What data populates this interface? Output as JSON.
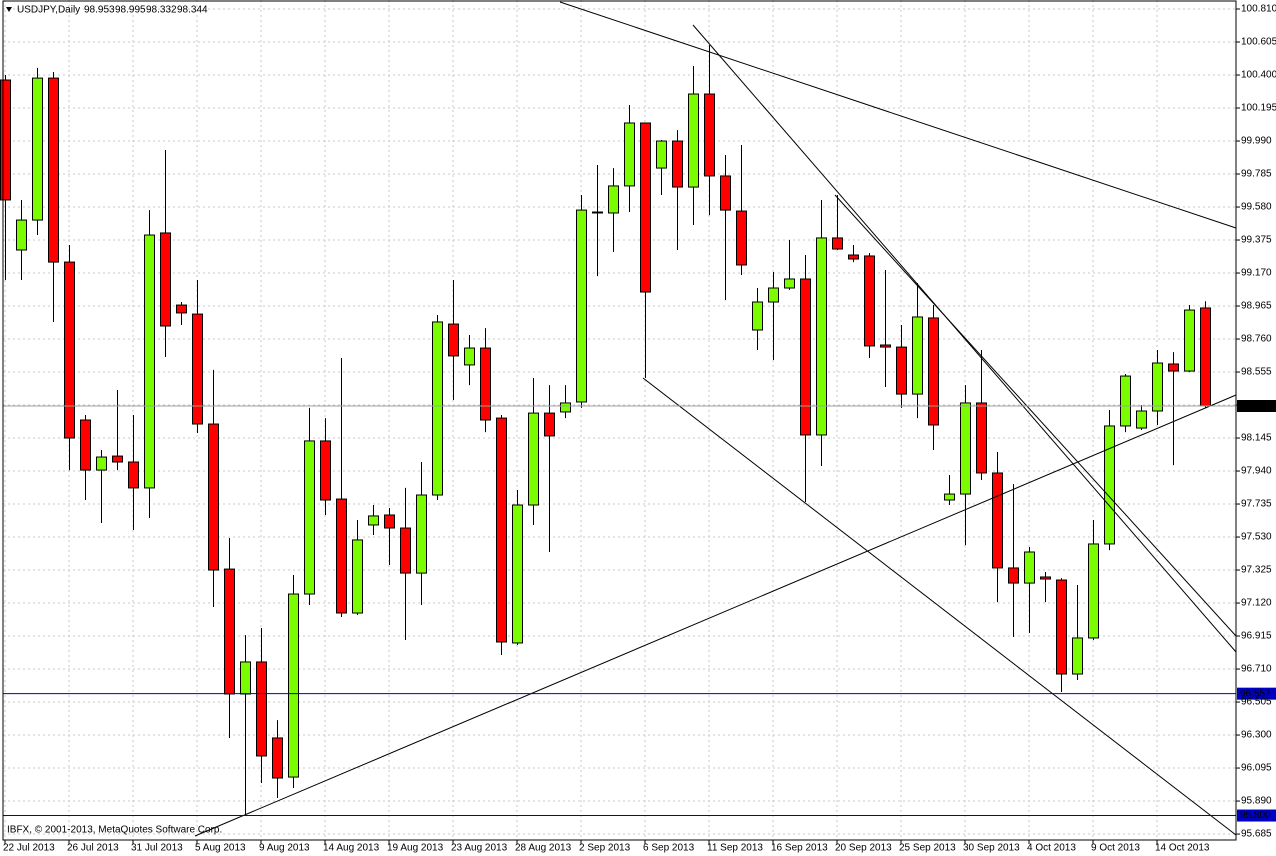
{
  "chart_data": {
    "type": "candlestick",
    "title": "USDJPY,Daily",
    "footer": "IBFX, © 2001-2013, MetaQuotes Software Corp.",
    "categories": [
      "22 Jul 2013",
      null,
      null,
      null,
      "26 Jul 2013",
      null,
      null,
      null,
      "31 Jul 2013",
      null,
      null,
      null,
      "5 Aug 2013",
      null,
      null,
      null,
      "9 Aug 2013",
      null,
      null,
      null,
      "14 Aug 2013",
      null,
      null,
      null,
      "19 Aug 2013",
      null,
      null,
      null,
      "23 Aug 2013",
      null,
      null,
      null,
      "28 Aug 2013",
      null,
      null,
      null,
      "2 Sep 2013",
      null,
      null,
      null,
      "6 Sep 2013",
      null,
      null,
      null,
      "11 Sep 2013",
      null,
      null,
      null,
      "16 Sep 2013",
      null,
      null,
      null,
      "20 Sep 2013",
      null,
      null,
      null,
      "25 Sep 2013",
      null,
      null,
      null,
      "30 Sep 2013",
      null,
      null,
      null,
      "4 Oct 2013",
      null,
      null,
      null,
      "9 Oct 2013",
      null,
      null,
      null,
      "14 Oct 2013",
      null,
      null,
      null
    ],
    "open": [
      100.369,
      99.313,
      99.499,
      100.381,
      99.238,
      98.257,
      97.946,
      98.033,
      97.996,
      97.835,
      99.419,
      98.971,
      98.915,
      98.232,
      97.331,
      96.555,
      96.754,
      96.282,
      96.039,
      97.176,
      98.127,
      97.766,
      97.058,
      97.605,
      97.667,
      97.586,
      97.306,
      97.791,
      98.853,
      98.599,
      98.704,
      98.269,
      96.872,
      97.729,
      98.3,
      98.307,
      98.369,
      99.549,
      99.543,
      99.711,
      100.102,
      99.822,
      99.99,
      99.704,
      100.282,
      99.773,
      99.555,
      98.816,
      98.99,
      99.077,
      99.133,
      98.164,
      99.388,
      99.282,
      99.276,
      98.723,
      98.71,
      98.418,
      98.891,
      97.76,
      97.797,
      98.363,
      97.928,
      97.338,
      97.244,
      97.282,
      97.263,
      96.679,
      96.903,
      97.487,
      98.22,
      98.207,
      98.313,
      98.605,
      98.561,
      98.953
    ],
    "high": [
      100.4,
      99.624,
      100.444,
      100.419,
      99.344,
      98.288,
      98.071,
      98.443,
      98.288,
      99.561,
      99.934,
      98.99,
      99.127,
      98.568,
      97.524,
      96.921,
      96.965,
      96.393,
      97.294,
      98.332,
      98.269,
      98.642,
      97.636,
      97.729,
      97.71,
      97.835,
      97.996,
      98.909,
      99.127,
      98.785,
      98.828,
      98.288,
      97.822,
      98.518,
      98.474,
      98.474,
      99.655,
      99.841,
      99.822,
      100.214,
      100.102,
      99.996,
      100.058,
      100.456,
      100.586,
      99.903,
      99.965,
      99.077,
      99.176,
      99.375,
      99.282,
      99.624,
      99.655,
      99.344,
      99.294,
      99.189,
      98.847,
      99.108,
      98.971,
      97.915,
      98.474,
      98.692,
      98.058,
      97.859,
      97.468,
      97.313,
      97.275,
      97.232,
      97.636,
      98.319,
      98.543,
      98.35,
      98.692,
      98.679,
      98.971,
      98.995
    ],
    "low": [
      99.127,
      99.127,
      99.406,
      98.866,
      97.946,
      97.76,
      97.617,
      97.946,
      97.574,
      97.648,
      98.648,
      98.847,
      98.176,
      97.095,
      96.282,
      95.803,
      96.002,
      95.909,
      95.971,
      97.108,
      97.667,
      97.033,
      97.046,
      97.543,
      97.356,
      96.89,
      97.108,
      97.76,
      98.381,
      98.474,
      98.182,
      96.797,
      96.859,
      97.605,
      97.437,
      98.269,
      98.332,
      99.151,
      99.301,
      99.549,
      98.518,
      99.655,
      99.313,
      99.468,
      99.53,
      99.002,
      99.158,
      98.692,
      98.63,
      99.065,
      97.748,
      97.971,
      99.313,
      99.238,
      98.642,
      98.462,
      98.332,
      98.269,
      98.071,
      97.729,
      97.48,
      97.884,
      97.126,
      96.909,
      96.934,
      97.126,
      96.567,
      96.642,
      96.89,
      97.449,
      98.182,
      98.195,
      98.226,
      97.977,
      98.555,
      98.332
    ],
    "close": [
      99.624,
      99.499,
      100.381,
      99.238,
      98.145,
      97.946,
      98.027,
      97.996,
      97.835,
      99.406,
      98.841,
      98.922,
      98.232,
      97.325,
      96.555,
      96.754,
      96.17,
      96.033,
      97.176,
      98.127,
      97.76,
      97.058,
      97.512,
      97.661,
      97.586,
      97.306,
      97.791,
      98.866,
      98.655,
      98.704,
      98.257,
      96.878,
      97.729,
      98.3,
      98.158,
      98.363,
      99.561,
      99.543,
      99.711,
      100.102,
      99.052,
      99.99,
      99.704,
      100.282,
      99.773,
      99.561,
      99.22,
      98.99,
      99.077,
      99.133,
      98.164,
      99.388,
      99.319,
      99.257,
      98.717,
      98.71,
      98.418,
      98.897,
      98.226,
      97.797,
      98.363,
      97.928,
      97.338,
      97.244,
      97.437,
      97.269,
      96.679,
      96.903,
      97.487,
      98.22,
      98.53,
      98.313,
      98.611,
      98.561,
      98.94,
      98.344
    ],
    "up_color": "#7cfc00",
    "down_color": "#ff0000",
    "ylim": [
      95.648,
      100.866
    ],
    "yticks": [
      {
        "value": 100.81,
        "label": "100.810"
      },
      100.605,
      {
        "value": 100.4,
        "label": "100.400"
      },
      100.195,
      {
        "value": 99.99,
        "label": "99.990"
      },
      99.785,
      {
        "value": 99.58,
        "label": "99.580"
      },
      99.375,
      {
        "value": 99.17,
        "label": "99.170"
      },
      98.965,
      {
        "value": 98.76,
        "label": "98.760"
      },
      98.555,
      {
        "value": 98.35,
        "label": "98.350"
      },
      98.145,
      {
        "value": 97.94,
        "label": "97.940"
      },
      97.735,
      {
        "value": 97.53,
        "label": "97.530"
      },
      97.325,
      {
        "value": 97.12,
        "label": "97.120"
      },
      96.915,
      {
        "value": 96.71,
        "label": "96.710"
      },
      96.505,
      {
        "value": 96.3,
        "label": "96.300"
      },
      96.095,
      {
        "value": 95.89,
        "label": "95.890"
      },
      95.685
    ],
    "hlines": [
      {
        "value": 96.557,
        "color": "#0000c0"
      },
      {
        "value": 95.8,
        "label": "95.800",
        "color": "#0000c0"
      }
    ],
    "grid": true
  }
}
